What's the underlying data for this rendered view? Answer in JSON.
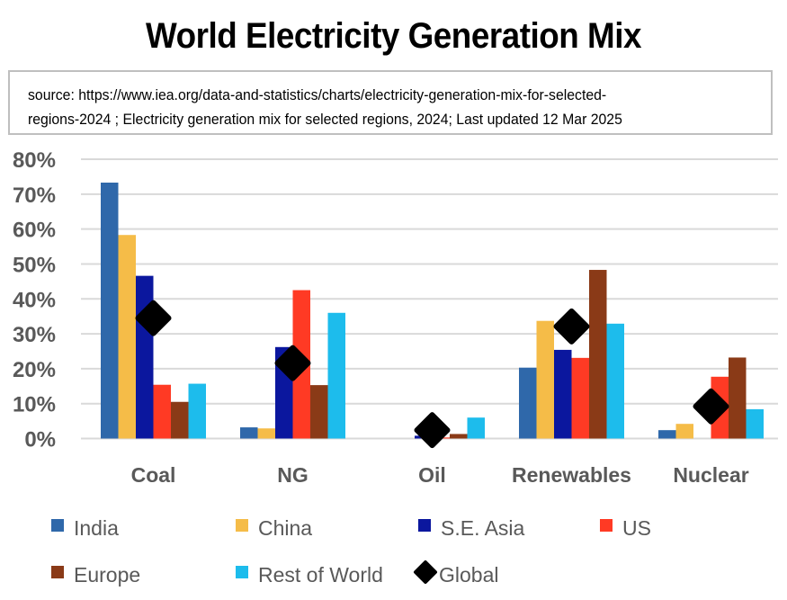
{
  "chart_data": {
    "type": "bar",
    "title": "World Electricity Generation Mix",
    "subtitle": "source: https://www.iea.org/data-and-statistics/charts/electricity-generation-mix-for-selected-regions-2024 ; Electricity generation mix for selected regions, 2024; Last updated 12 Mar 2025",
    "subtitle_lines": [
      "source: https://www.iea.org/data-and-statistics/charts/electricity-generation-mix-for-selected-",
      "regions-2024 ; Electricity generation mix for selected regions, 2024; Last updated 12 Mar 2025"
    ],
    "xlabel": "",
    "ylabel": "",
    "ylim": [
      0,
      0.8
    ],
    "yticks": [
      0,
      0.1,
      0.2,
      0.3,
      0.4,
      0.5,
      0.6,
      0.7,
      0.8
    ],
    "ytick_labels": [
      "0%",
      "10%",
      "20%",
      "30%",
      "40%",
      "50%",
      "60%",
      "70%",
      "80%"
    ],
    "grid": true,
    "legend_position": "bottom",
    "categories": [
      "Coal",
      "NG",
      "Oil",
      "Renewables",
      "Nuclear"
    ],
    "series": [
      {
        "name": "India",
        "type": "bar",
        "color": "#2F68AA",
        "values": [
          0.733,
          0.032,
          0.0,
          0.203,
          0.024
        ]
      },
      {
        "name": "China",
        "type": "bar",
        "color": "#F5BC48",
        "values": [
          0.583,
          0.029,
          0.0,
          0.337,
          0.042
        ]
      },
      {
        "name": "S.E. Asia",
        "type": "bar",
        "color": "#0B179E",
        "values": [
          0.466,
          0.262,
          0.008,
          0.254,
          0.0
        ]
      },
      {
        "name": "US",
        "type": "bar",
        "color": "#FF3A24",
        "values": [
          0.154,
          0.425,
          0.003,
          0.231,
          0.177
        ]
      },
      {
        "name": "Europe",
        "type": "bar",
        "color": "#8A3A17",
        "values": [
          0.105,
          0.153,
          0.013,
          0.483,
          0.232
        ]
      },
      {
        "name": "Rest of World",
        "type": "bar",
        "color": "#1DBCEC",
        "values": [
          0.157,
          0.36,
          0.06,
          0.329,
          0.084
        ]
      },
      {
        "name": "Global",
        "type": "marker",
        "marker": "diamond",
        "color": "#000000",
        "values": [
          0.345,
          0.216,
          0.024,
          0.321,
          0.092
        ]
      }
    ]
  }
}
